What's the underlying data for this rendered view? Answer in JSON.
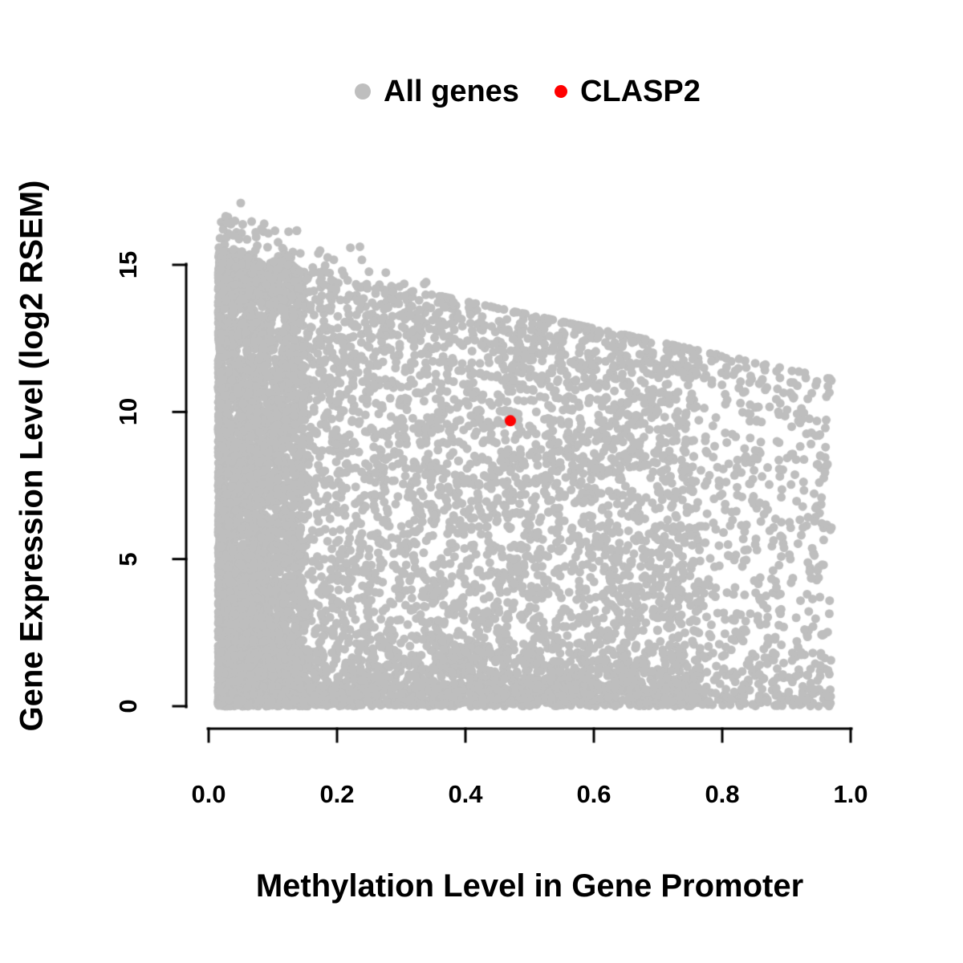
{
  "chart_data": {
    "type": "scatter",
    "title": "",
    "xlabel": "Methylation Level in Gene Promoter",
    "ylabel": "Gene Expression Level (log2 RSEM)",
    "xlim": [
      0.0,
      1.0
    ],
    "ylim": [
      0,
      17.5
    ],
    "x_ticks": [
      0.0,
      0.2,
      0.4,
      0.6,
      0.8,
      1.0
    ],
    "x_tick_labels": [
      "0.0",
      "0.2",
      "0.4",
      "0.6",
      "0.8",
      "1.0"
    ],
    "y_ticks": [
      0,
      5,
      10,
      15
    ],
    "y_tick_labels": [
      "0",
      "5",
      "10",
      "15"
    ],
    "grid": false,
    "legend_position": "top-center",
    "series": [
      {
        "name": "All genes",
        "color": "#bebebe",
        "representation": "dense_cloud_generated",
        "n_points": 9500,
        "seed": 42,
        "x_min": 0.015,
        "x_max": 0.97,
        "y_min": 0,
        "envelope_y_at_x0": 15.6,
        "envelope_y_at_x1": 11.0,
        "max_point": [
          0.05,
          17.1
        ]
      },
      {
        "name": "CLASP2",
        "color": "#ff0000",
        "points": [
          [
            0.47,
            9.7
          ]
        ]
      }
    ]
  },
  "style": {
    "point_color": "#bebebe",
    "highlight_color": "#ff0000",
    "axis_color": "#000000",
    "background": "#ffffff"
  }
}
